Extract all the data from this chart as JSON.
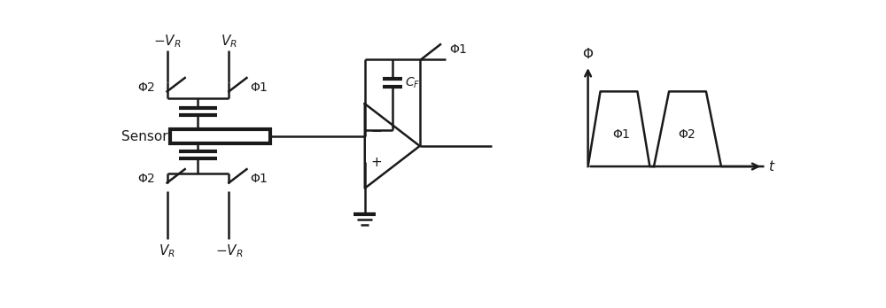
{
  "fig_width": 10.0,
  "fig_height": 3.48,
  "dpi": 100,
  "bg_color": "#ffffff",
  "line_color": "#1a1a1a",
  "lw": 1.8,
  "lw_thick": 3.0,
  "font_size": 11,
  "font_size_small": 10
}
